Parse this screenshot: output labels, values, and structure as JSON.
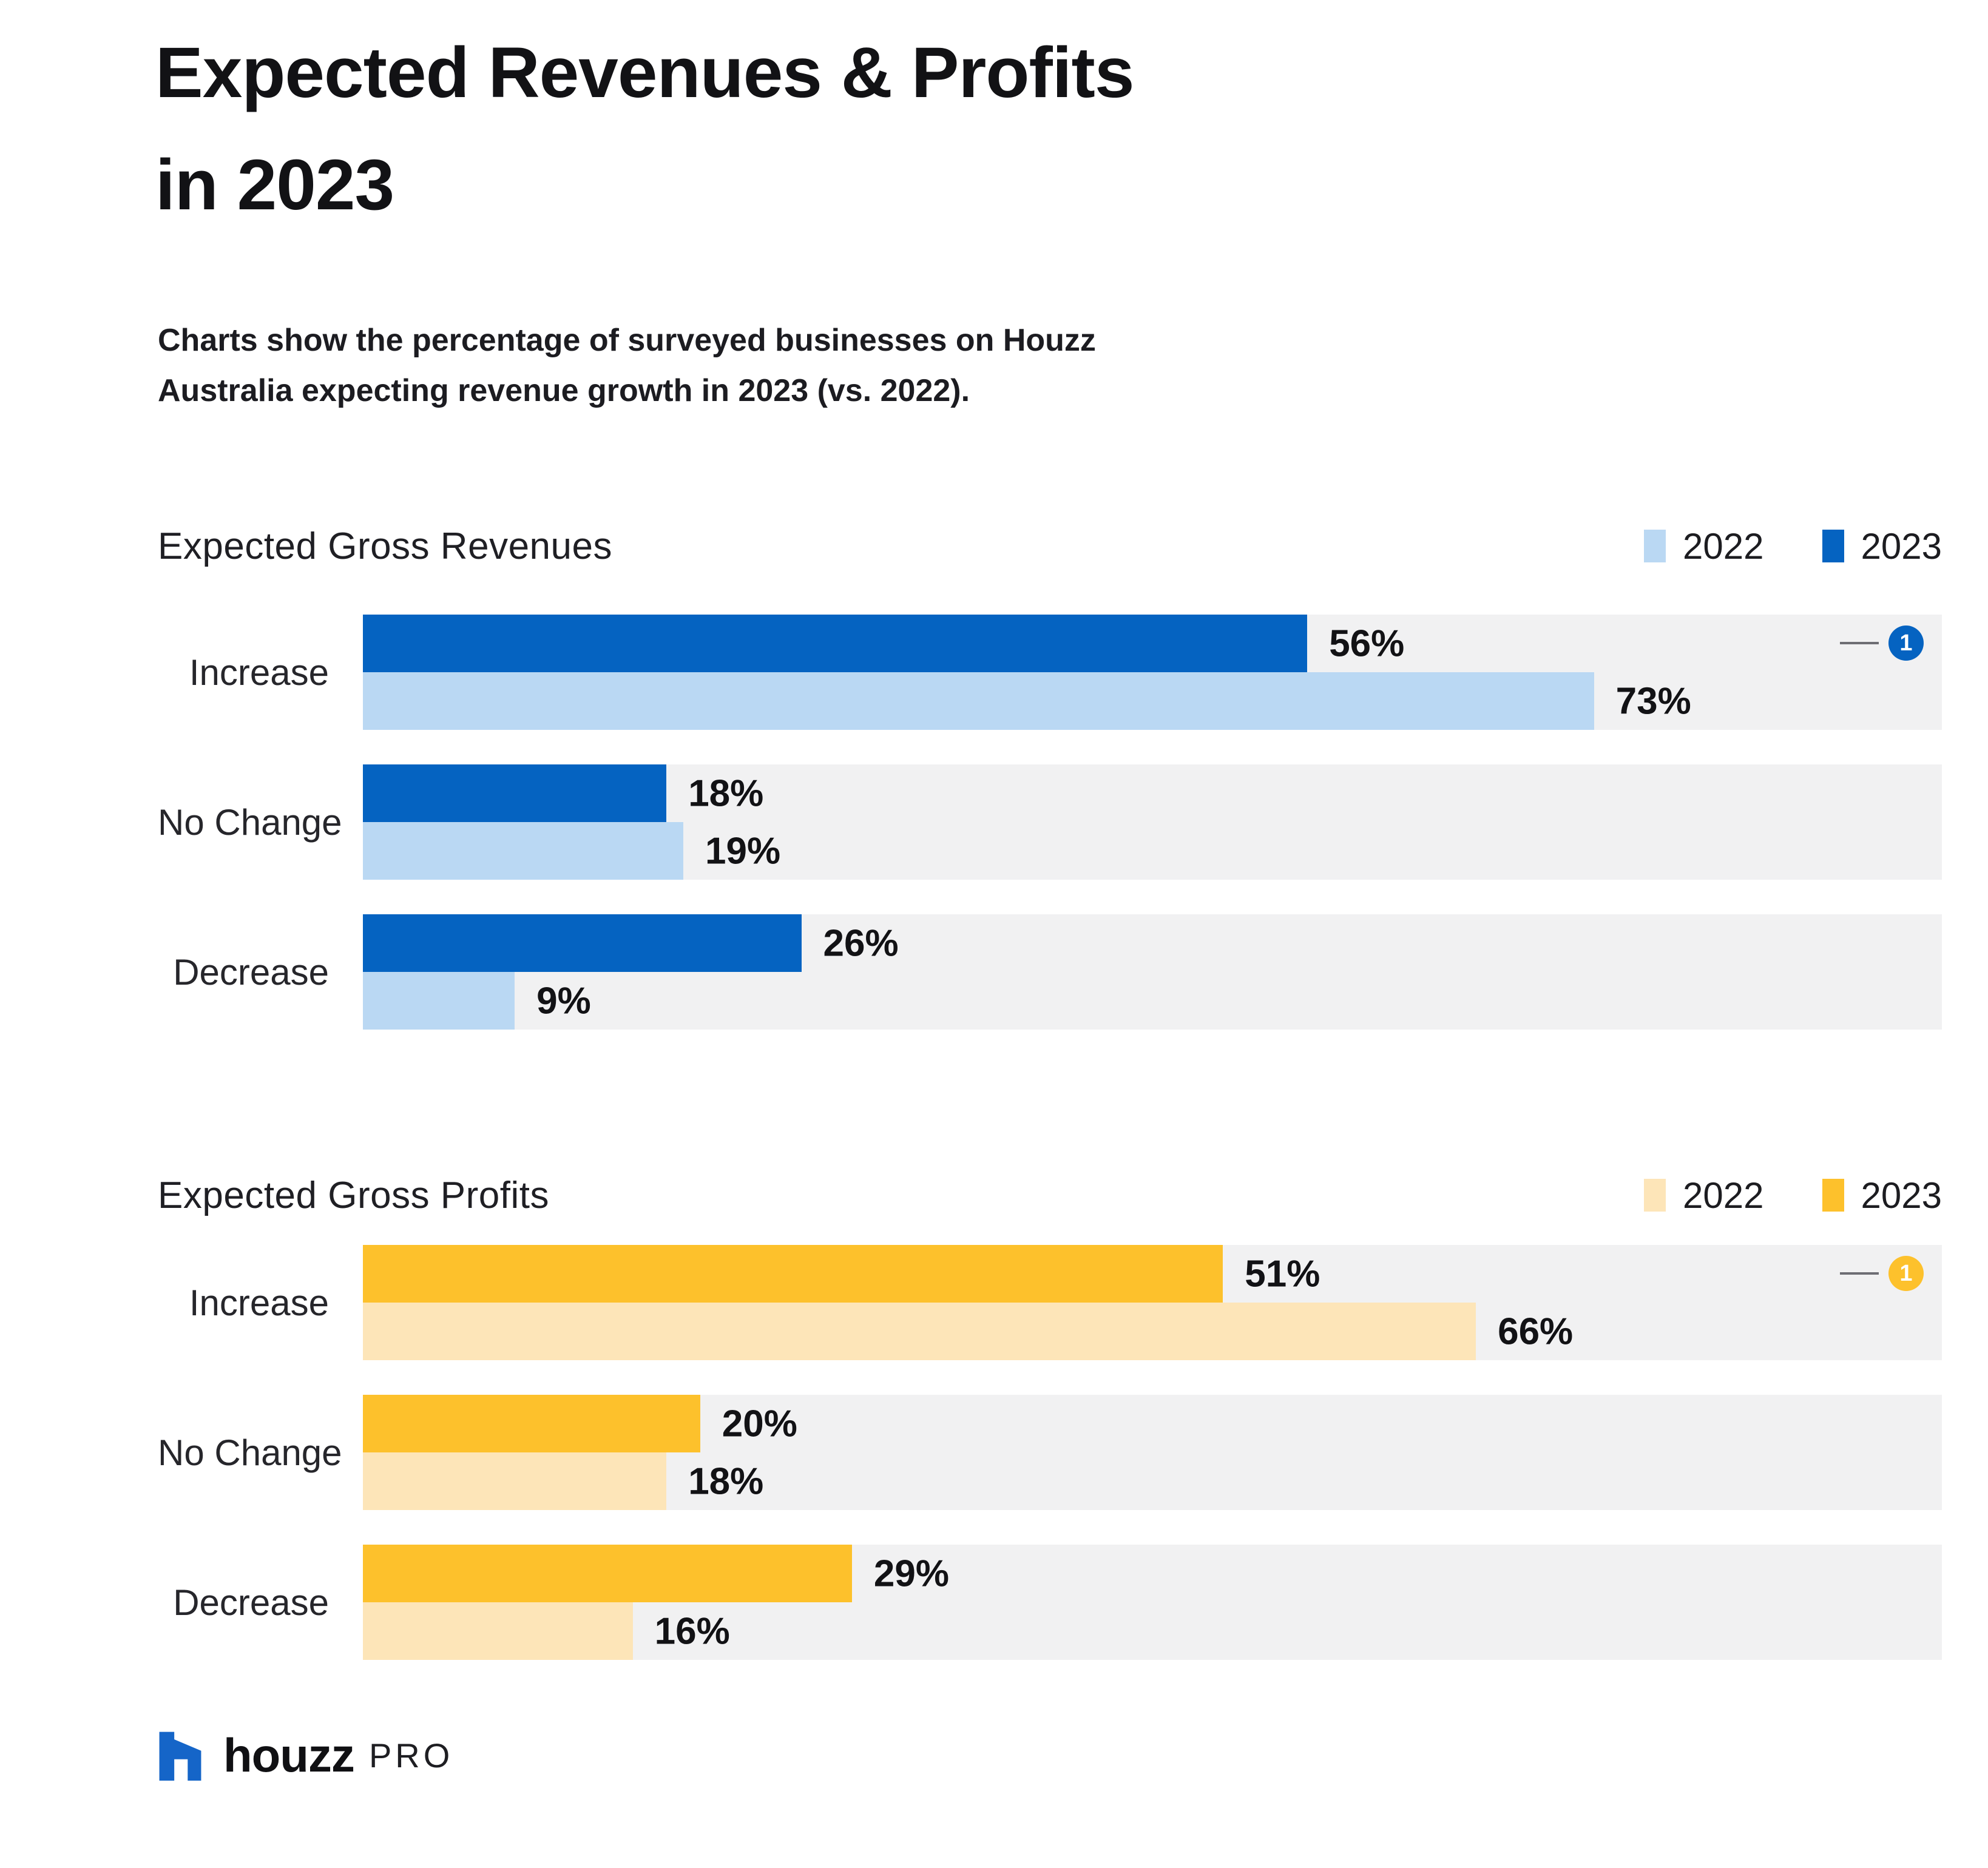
{
  "title": "Expected Revenues & Profits in 2023",
  "subtitle": "Charts show the percentage of surveyed businesses on Houzz Australia expecting revenue growth in 2023 (vs. 2022).",
  "footer": {
    "brand": "houzz",
    "suffix": "PRO"
  },
  "colors": {
    "revenue_2023": "#0563C1",
    "revenue_2022": "#BAD8F3",
    "profit_2023": "#FDC12C",
    "profit_2022": "#FDE5B8",
    "track_background": "#F1F1F2",
    "logo_blue": "#1565C8"
  },
  "chart_data": [
    {
      "type": "bar",
      "orientation": "horizontal",
      "title": "Expected Gross Revenues",
      "categories": [
        "Increase",
        "No Change",
        "Decrease"
      ],
      "series": [
        {
          "name": "2023",
          "color": "#0563C1",
          "values": [
            56,
            18,
            26
          ]
        },
        {
          "name": "2022",
          "color": "#BAD8F3",
          "values": [
            73,
            19,
            9
          ]
        }
      ],
      "legend": [
        {
          "label": "2022",
          "color": "#BAD8F3"
        },
        {
          "label": "2023",
          "color": "#0563C1"
        }
      ],
      "value_suffix": "%",
      "annotation_marker": "1",
      "xlim": [
        0,
        100
      ],
      "grid": false,
      "legend_position": "top-right"
    },
    {
      "type": "bar",
      "orientation": "horizontal",
      "title": "Expected Gross Profits",
      "categories": [
        "Increase",
        "No Change",
        "Decrease"
      ],
      "series": [
        {
          "name": "2023",
          "color": "#FDC12C",
          "values": [
            51,
            20,
            29
          ]
        },
        {
          "name": "2022",
          "color": "#FDE5B8",
          "values": [
            66,
            18,
            16
          ]
        }
      ],
      "legend": [
        {
          "label": "2022",
          "color": "#FDE5B8"
        },
        {
          "label": "2023",
          "color": "#FDC12C"
        }
      ],
      "value_suffix": "%",
      "annotation_marker": "1",
      "xlim": [
        0,
        100
      ],
      "grid": false,
      "legend_position": "top-right"
    }
  ]
}
